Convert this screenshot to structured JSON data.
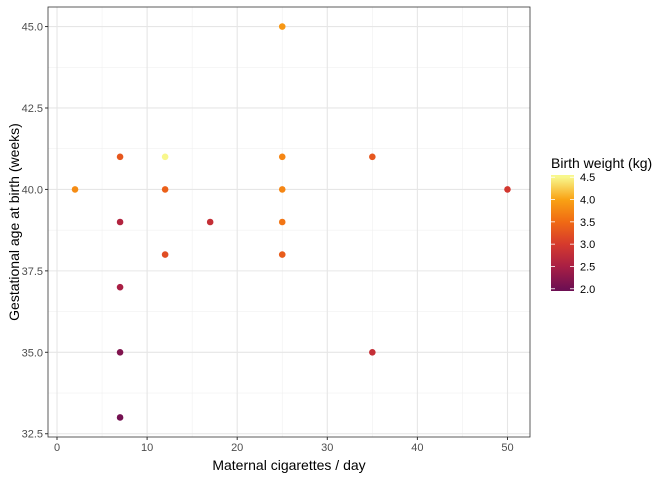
{
  "chart_data": {
    "type": "scatter",
    "xlabel": "Maternal cigarettes / day",
    "ylabel": "Gestational age at birth (weeks)",
    "xlim": [
      -1,
      52.5
    ],
    "ylim": [
      32.4,
      45.6
    ],
    "xticks": [
      0,
      10,
      20,
      30,
      40,
      50
    ],
    "xtick_labels": [
      "0",
      "10",
      "20",
      "30",
      "40",
      "50"
    ],
    "yticks": [
      32.5,
      35,
      37.5,
      40,
      42.5,
      45
    ],
    "ytick_labels": [
      "32.5",
      "35.0",
      "37.5",
      "40.0",
      "42.5",
      "45.0"
    ],
    "grid": true,
    "legend": {
      "title": "Birth weight (kg)",
      "placement": "right",
      "range": [
        1.95,
        4.55
      ],
      "ticks": [
        "2.0",
        "2.5",
        "3.0",
        "3.5",
        "4.0",
        "4.5"
      ],
      "colors": [
        "#6e0f52",
        "#a91f44",
        "#d63a2d",
        "#f06a14",
        "#f9a214",
        "#f8f78c"
      ]
    },
    "points": [
      {
        "x": 25,
        "y": 45,
        "w": 3.9
      },
      {
        "x": 7,
        "y": 41,
        "w": 3.3
      },
      {
        "x": 12,
        "y": 41,
        "w": 4.5
      },
      {
        "x": 25,
        "y": 41,
        "w": 3.75
      },
      {
        "x": 35,
        "y": 41,
        "w": 3.3
      },
      {
        "x": 2,
        "y": 40,
        "w": 3.8
      },
      {
        "x": 12,
        "y": 40,
        "w": 3.4
      },
      {
        "x": 25,
        "y": 40,
        "w": 3.75
      },
      {
        "x": 50,
        "y": 40,
        "w": 2.95
      },
      {
        "x": 7,
        "y": 39,
        "w": 2.6
      },
      {
        "x": 17,
        "y": 39,
        "w": 2.8
      },
      {
        "x": 25,
        "y": 39,
        "w": 3.6
      },
      {
        "x": 12,
        "y": 38,
        "w": 3.2
      },
      {
        "x": 25,
        "y": 38,
        "w": 3.35
      },
      {
        "x": 7,
        "y": 37,
        "w": 2.5
      },
      {
        "x": 7,
        "y": 35,
        "w": 2.15
      },
      {
        "x": 35,
        "y": 35,
        "w": 2.8
      },
      {
        "x": 7,
        "y": 33,
        "w": 2.05
      }
    ]
  }
}
